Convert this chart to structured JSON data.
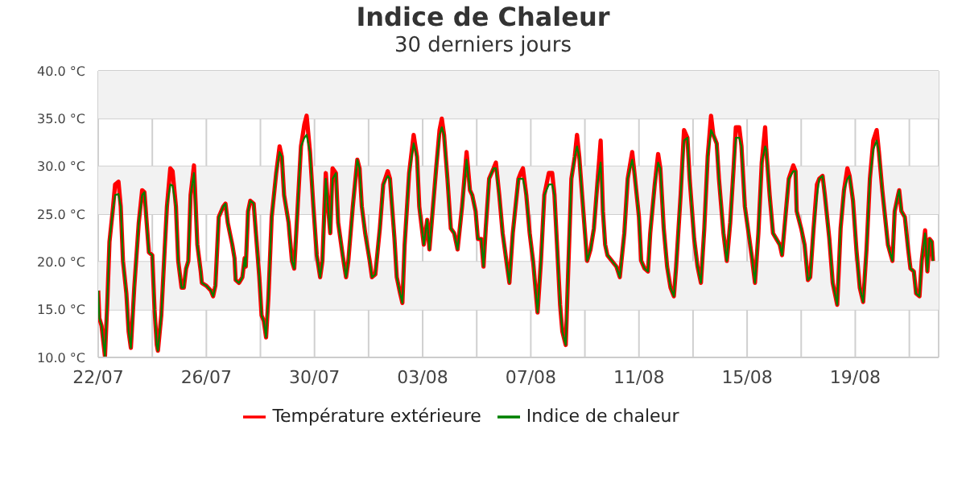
{
  "chart_data": {
    "type": "line",
    "title": "Indice de Chaleur",
    "subtitle": "30 derniers jours",
    "x": [
      "--07-22T00:00",
      "--07-22T01:00",
      "--07-22T03:00",
      "--07-22T06:00",
      "--07-22T08:00",
      "--07-22T10:00",
      "--07-22T13:00",
      "--07-22T15:00",
      "--07-22T18:00",
      "--07-22T20:00",
      "--07-22T22:00",
      "--07-23T01:00",
      "--07-23T03:00",
      "--07-23T05:00",
      "--07-23T08:00",
      "--07-23T12:00",
      "--07-23T15:00",
      "--07-23T17:00",
      "--07-23T21:00",
      "--07-24T00:00",
      "--07-24T02:00",
      "--07-24T04:00",
      "--07-24T05:00",
      "--07-24T08:00",
      "--07-24T11:00",
      "--07-24T13:00",
      "--07-24T16:00",
      "--07-24T18:00",
      "--07-24T21:00",
      "--07-24T23:00",
      "--07-25T02:00",
      "--07-25T04:00",
      "--07-25T06:00",
      "--07-25T08:00",
      "--07-25T10:00",
      "--07-25T13:00",
      "--07-25T16:00",
      "--07-25T19:00",
      "--07-25T20:00",
      "--07-26T00:00",
      "--07-26T04:00",
      "--07-26T06:00",
      "--07-26T08:00",
      "--07-26T11:00",
      "--07-26T15:00",
      "--07-26T17:00",
      "--07-26T19:00",
      "--07-26T23:00",
      "--07-27T01:00",
      "--07-27T02:00",
      "--07-27T05:00",
      "--07-27T08:00",
      "--07-27T10:00",
      "--07-27T11:00",
      "--07-27T13:00",
      "--07-27T15:00",
      "--07-27T18:00",
      "--07-27T20:00",
      "--07-27T23:00",
      "--07-28T01:00",
      "--07-28T03:00",
      "--07-28T05:00",
      "--07-28T07:00",
      "--07-28T10:00",
      "--07-28T14:00",
      "--07-28T17:00",
      "--07-28T19:00",
      "--07-28T21:00",
      "--07-29T01:00",
      "--07-29T02:00",
      "--07-29T04:00",
      "--07-29T06:00",
      "--07-29T08:00",
      "--07-29T12:00",
      "--07-29T15:00",
      "--07-29T17:00",
      "--07-29T20:00",
      "--07-29T23:00",
      "--07-30T02:00",
      "--07-30T05:00",
      "--07-30T07:00",
      "--07-30T10:00",
      "--07-30T12:00",
      "--07-30T14:00",
      "--07-30T16:00",
      "--07-30T19:00",
      "--07-30T21:00",
      "--07-31T01:00",
      "--07-31T04:00",
      "--07-31T06:00",
      "--07-31T10:00",
      "--07-31T14:00",
      "--07-31T16:00",
      "--07-31T18:00",
      "--07-31T21:00",
      "--08-01T01:00",
      "--08-01T03:00",
      "--08-01T06:00",
      "--08-01T10:00",
      "--08-01T13:00",
      "--08-01T17:00",
      "--08-01T19:00",
      "--08-01T23:00",
      "--08-02T01:00",
      "--08-02T04:00",
      "--08-02T06:00",
      "--08-02T08:00",
      "--08-02T12:00",
      "--08-02T16:00",
      "--08-02T19:00",
      "--08-02T21:00",
      "--08-03T01:00",
      "--08-03T04:00",
      "--08-03T06:00",
      "--08-03T08:00",
      "--08-03T12:00",
      "--08-03T15:00",
      "--08-03T17:00",
      "--08-03T19:00",
      "--08-03T22:00",
      "--08-04T01:00",
      "--08-04T04:00",
      "--08-04T07:00",
      "--08-04T11:00",
      "--08-04T15:00",
      "--08-04T18:00",
      "--08-04T20:00",
      "--08-04T23:00",
      "--08-05T01:00",
      "--08-05T04:00",
      "--08-05T06:00",
      "--08-05T08:00",
      "--08-05T11:00",
      "--08-05T15:00",
      "--08-05T17:00",
      "--08-05T20:00",
      "--08-05T23:00",
      "--08-06T03:00",
      "--08-06T05:00",
      "--08-06T08:00",
      "--08-06T13:00",
      "--08-06T15:00",
      "--08-06T17:00",
      "--08-06T20:00",
      "--08-06T23:00",
      "--08-07T02:00",
      "--08-07T06:00",
      "--08-07T09:00",
      "--08-07T12:00",
      "--08-07T16:00",
      "--08-07T19:00",
      "--08-07T21:00",
      "--08-07T23:00",
      "--08-08T02:00",
      "--08-08T04:00",
      "--08-08T07:00",
      "--08-08T09:00",
      "--08-08T12:00",
      "--08-08T15:00",
      "--08-08T17:00",
      "--08-08T19:00",
      "--08-08T23:00",
      "--08-09T02:00",
      "--08-09T05:00",
      "--08-09T08:00",
      "--08-09T11:00",
      "--08-09T14:00",
      "--08-09T16:00",
      "--08-09T18:00",
      "--08-09T20:00",
      "--08-10T00:00",
      "--08-10T04:00",
      "--08-10T07:00",
      "--08-10T11:00",
      "--08-10T14:00",
      "--08-10T18:00",
      "--08-10T20:00",
      "--08-11T00:00",
      "--08-11T02:00",
      "--08-11T05:00",
      "--08-11T08:00",
      "--08-11T10:00",
      "--08-11T14:00",
      "--08-11T17:00",
      "--08-11T19:00",
      "--08-11T22:00",
      "--08-12T01:00",
      "--08-12T04:00",
      "--08-12T07:00",
      "--08-12T09:00",
      "--08-12T13:00",
      "--08-12T16:00",
      "--08-12T19:00",
      "--08-12T21:00",
      "--08-13T01:00",
      "--08-13T04:00",
      "--08-13T07:00",
      "--08-13T10:00",
      "--08-13T13:00",
      "--08-13T16:00",
      "--08-13T18:00",
      "--08-13T21:00",
      "--08-13T23:00",
      "--08-14T03:00",
      "--08-14T06:00",
      "--08-14T09:00",
      "--08-14T12:00",
      "--08-14T14:00",
      "--08-14T17:00",
      "--08-14T19:00",
      "--08-14T22:00",
      "--08-15T02:00",
      "--08-15T04:00",
      "--08-15T07:00",
      "--08-15T10:00",
      "--08-15T13:00",
      "--08-15T16:00",
      "--08-15T17:00",
      "--08-15T20:00",
      "--08-15T23:00",
      "--08-16T02:00",
      "--08-16T05:00",
      "--08-16T07:00",
      "--08-16T10:00",
      "--08-16T13:00",
      "--08-16T17:00",
      "--08-16T19:00",
      "--08-16T20:00",
      "--08-17T00:00",
      "--08-17T03:00",
      "--08-17T06:00",
      "--08-17T08:00",
      "--08-17T11:00",
      "--08-17T14:00",
      "--08-17T16:00",
      "--08-17T19:00",
      "--08-17T21:00",
      "--08-18T01:00",
      "--08-18T04:00",
      "--08-18T08:00",
      "--08-18T11:00",
      "--08-18T14:00",
      "--08-18T17:00",
      "--08-18T19:00",
      "--08-18T22:00",
      "--08-19T01:00",
      "--08-19T04:00",
      "--08-19T07:00",
      "--08-19T10:00",
      "--08-19T13:00",
      "--08-19T16:00",
      "--08-19T19:00",
      "--08-19T21:00",
      "--08-20T00:00",
      "--08-20T03:00",
      "--08-20T05:00",
      "--08-20T09:00",
      "--08-20T11:00",
      "--08-20T14:00",
      "--08-20T15:00",
      "--08-20T17:00",
      "--08-20T20:00",
      "--08-20T23:00",
      "--08-21T01:00",
      "--08-21T04:00",
      "--08-21T06:00",
      "--08-21T09:00",
      "--08-21T11:00",
      "--08-21T14:00",
      "--08-21T16:00",
      "--08-21T18:00",
      "--08-21T20:00",
      "--08-21T21:00"
    ],
    "series": [
      {
        "name": "Température extérieure",
        "color": "#ff0000",
        "values": [
          17.0,
          14.1,
          13.3,
          10.1,
          15.5,
          22.1,
          25.5,
          28.1,
          28.4,
          25.8,
          20.1,
          16.7,
          12.7,
          11.0,
          17.3,
          24.1,
          27.5,
          27.3,
          21.0,
          20.7,
          15.0,
          11.3,
          10.7,
          14.4,
          21.3,
          25.8,
          29.8,
          29.5,
          25.8,
          20.1,
          17.3,
          17.3,
          19.3,
          20.1,
          27.0,
          30.1,
          21.8,
          19.0,
          17.8,
          17.5,
          17.0,
          16.4,
          17.5,
          24.7,
          25.8,
          26.1,
          24.1,
          21.8,
          20.4,
          18.1,
          17.8,
          18.4,
          20.4,
          19.5,
          25.3,
          26.4,
          26.1,
          23.0,
          18.4,
          14.4,
          13.8,
          12.1,
          16.1,
          24.7,
          29.3,
          32.1,
          31.0,
          27.0,
          24.1,
          22.7,
          20.1,
          19.3,
          23.5,
          32.1,
          34.4,
          35.3,
          31.5,
          25.8,
          20.7,
          18.4,
          20.1,
          29.3,
          25.8,
          23.0,
          29.8,
          29.3,
          24.1,
          20.7,
          18.4,
          20.1,
          25.8,
          30.7,
          29.8,
          25.8,
          23.0,
          20.1,
          18.4,
          18.7,
          23.5,
          28.1,
          29.5,
          28.7,
          22.4,
          18.4,
          16.7,
          15.7,
          21.8,
          29.3,
          33.3,
          31.0,
          25.8,
          21.8,
          24.4,
          21.3,
          24.1,
          29.8,
          33.8,
          35.0,
          33.3,
          28.7,
          23.5,
          23.0,
          21.3,
          25.8,
          31.5,
          27.5,
          27.0,
          25.3,
          22.4,
          22.4,
          19.5,
          23.5,
          28.7,
          29.8,
          30.4,
          27.0,
          23.0,
          19.5,
          17.8,
          23.0,
          28.7,
          29.3,
          29.8,
          27.0,
          23.0,
          20.1,
          14.7,
          20.1,
          27.0,
          29.3,
          29.3,
          27.0,
          22.4,
          15.5,
          12.7,
          11.3,
          18.4,
          28.7,
          31.0,
          33.3,
          31.0,
          24.7,
          20.1,
          21.3,
          23.5,
          28.1,
          32.7,
          25.3,
          21.8,
          20.7,
          20.1,
          19.5,
          18.4,
          23.0,
          28.7,
          31.5,
          29.3,
          24.7,
          20.1,
          19.3,
          19.0,
          23.0,
          28.1,
          31.3,
          29.8,
          23.5,
          19.5,
          17.3,
          16.4,
          19.5,
          27.0,
          33.8,
          33.0,
          28.7,
          22.4,
          19.5,
          17.8,
          23.5,
          31.0,
          35.3,
          33.3,
          32.4,
          28.7,
          23.0,
          20.1,
          24.1,
          29.8,
          34.1,
          34.1,
          32.1,
          25.8,
          22.4,
          20.7,
          17.8,
          23.0,
          30.4,
          34.1,
          31.8,
          27.0,
          23.0,
          22.4,
          21.8,
          20.7,
          24.7,
          28.7,
          30.1,
          29.5,
          25.3,
          23.5,
          21.8,
          18.1,
          18.4,
          23.5,
          28.1,
          28.7,
          29.0,
          27.0,
          22.4,
          17.8,
          15.5,
          23.5,
          27.5,
          29.8,
          29.0,
          26.4,
          21.3,
          17.3,
          15.8,
          21.3,
          28.7,
          32.7,
          33.8,
          31.5,
          27.5,
          24.1,
          21.8,
          20.1,
          25.3,
          27.0,
          27.5,
          25.3,
          24.7,
          21.3,
          19.3,
          19.0,
          16.7,
          16.4,
          20.1,
          23.3,
          19.0,
          22.4,
          22.1,
          20.1
        ]
      },
      {
        "name": "Indice de chaleur",
        "color": "#008000",
        "values": [
          17.0,
          14.1,
          13.3,
          10.1,
          15.5,
          22.1,
          25.5,
          27.0,
          27.1,
          25.8,
          20.1,
          16.7,
          12.7,
          11.0,
          17.3,
          24.1,
          27.0,
          27.3,
          21.0,
          20.7,
          15.0,
          11.3,
          10.7,
          14.4,
          21.3,
          25.8,
          28.1,
          28.0,
          25.8,
          20.1,
          17.3,
          17.3,
          19.3,
          20.1,
          27.0,
          29.3,
          21.8,
          19.0,
          17.8,
          17.5,
          17.0,
          16.4,
          17.5,
          24.7,
          25.8,
          26.1,
          24.1,
          21.8,
          20.4,
          18.1,
          17.8,
          18.4,
          20.4,
          19.5,
          25.3,
          26.4,
          26.1,
          23.0,
          18.4,
          14.4,
          13.8,
          12.1,
          16.1,
          24.7,
          29.3,
          31.5,
          31.0,
          27.0,
          24.1,
          22.7,
          20.1,
          19.3,
          23.5,
          32.1,
          33.0,
          33.3,
          31.5,
          25.8,
          20.7,
          18.4,
          20.1,
          28.7,
          25.8,
          23.0,
          28.7,
          29.3,
          24.1,
          20.7,
          18.4,
          20.1,
          25.8,
          30.7,
          29.8,
          25.8,
          23.0,
          20.1,
          18.4,
          18.7,
          23.5,
          28.1,
          29.0,
          28.7,
          22.4,
          18.4,
          16.7,
          15.7,
          21.8,
          29.3,
          32.4,
          31.0,
          25.8,
          21.8,
          24.4,
          21.3,
          24.1,
          29.8,
          33.3,
          34.1,
          33.3,
          28.7,
          23.5,
          23.0,
          21.3,
          25.8,
          30.7,
          27.5,
          27.0,
          25.3,
          22.4,
          22.4,
          19.5,
          23.5,
          28.7,
          29.8,
          29.8,
          27.0,
          23.0,
          19.5,
          17.8,
          23.0,
          28.7,
          28.7,
          28.7,
          27.0,
          23.0,
          20.1,
          14.7,
          20.1,
          27.0,
          28.1,
          28.1,
          27.0,
          22.4,
          15.5,
          12.7,
          11.3,
          18.4,
          28.7,
          31.0,
          32.1,
          31.0,
          24.7,
          20.1,
          21.3,
          23.5,
          28.1,
          30.4,
          25.3,
          21.8,
          20.7,
          20.1,
          19.5,
          18.4,
          23.0,
          28.7,
          30.7,
          29.3,
          24.7,
          20.1,
          19.3,
          19.0,
          23.0,
          28.1,
          30.4,
          29.8,
          23.5,
          19.5,
          17.3,
          16.4,
          19.5,
          27.0,
          32.7,
          33.0,
          28.7,
          22.4,
          19.5,
          17.8,
          23.5,
          31.0,
          33.8,
          33.3,
          32.4,
          28.7,
          23.0,
          20.1,
          24.1,
          29.8,
          33.0,
          33.0,
          32.1,
          25.8,
          22.4,
          20.7,
          17.8,
          23.0,
          30.4,
          32.1,
          31.8,
          27.0,
          23.0,
          22.4,
          21.8,
          20.7,
          24.7,
          28.7,
          29.5,
          29.5,
          25.3,
          23.5,
          21.8,
          18.1,
          18.4,
          23.5,
          27.0,
          28.7,
          29.0,
          27.0,
          22.4,
          17.8,
          15.5,
          23.5,
          27.5,
          28.7,
          29.0,
          26.4,
          21.3,
          17.3,
          15.8,
          21.3,
          28.7,
          31.8,
          32.7,
          31.5,
          27.5,
          24.1,
          21.8,
          20.1,
          25.3,
          27.0,
          27.5,
          25.3,
          24.7,
          21.3,
          19.3,
          19.0,
          16.7,
          16.4,
          20.1,
          23.0,
          19.0,
          22.4,
          22.1,
          20.1
        ]
      }
    ],
    "xlim": [
      "--07-22T00:00",
      "--08-22T02:00"
    ],
    "xticks": [
      {
        "value": "--07-22",
        "label": "22/07"
      },
      {
        "value": "--07-24",
        "label": null
      },
      {
        "value": "--07-26",
        "label": "26/07"
      },
      {
        "value": "--07-28",
        "label": null
      },
      {
        "value": "--07-30",
        "label": "30/07"
      },
      {
        "value": "--08-01",
        "label": null
      },
      {
        "value": "--08-03",
        "label": "03/08"
      },
      {
        "value": "--08-05",
        "label": null
      },
      {
        "value": "--08-07",
        "label": "07/08"
      },
      {
        "value": "--08-09",
        "label": null
      },
      {
        "value": "--08-11",
        "label": "11/08"
      },
      {
        "value": "--08-13",
        "label": null
      },
      {
        "value": "--08-15",
        "label": "15/08"
      },
      {
        "value": "--08-17",
        "label": null
      },
      {
        "value": "--08-19",
        "label": "19/08"
      },
      {
        "value": "--08-21",
        "label": null
      }
    ],
    "ylim": [
      10,
      40
    ],
    "yticks": [
      {
        "value": 10,
        "label": "10.0 °C"
      },
      {
        "value": 15,
        "label": "15.0 °C"
      },
      {
        "value": 20,
        "label": "20.0 °C"
      },
      {
        "value": 25,
        "label": "25.0 °C"
      },
      {
        "value": 30,
        "label": "30.0 °C"
      },
      {
        "value": 35,
        "label": "35.0 °C"
      },
      {
        "value": 40,
        "label": "40.0 °C"
      }
    ],
    "bands": [
      {
        "axis": "y",
        "from": 15,
        "to": 20,
        "color": "#f2f2f2"
      },
      {
        "axis": "y",
        "from": 25,
        "to": 30,
        "color": "#f2f2f2"
      },
      {
        "axis": "y",
        "from": 35,
        "to": 40,
        "color": "#f2f2f2"
      }
    ],
    "grid": true,
    "legend": "bottom"
  }
}
